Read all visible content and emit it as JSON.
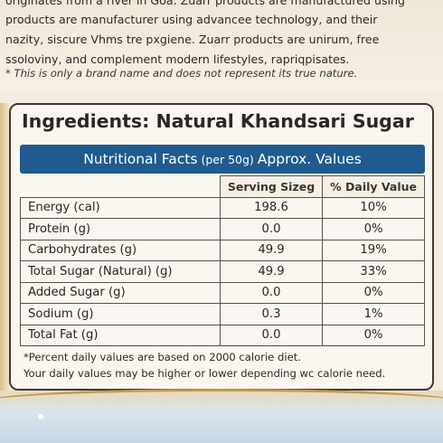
{
  "intro": {
    "line1": "originates from a river in Goa. Zuarr products are manufactured using",
    "line2": "products are manufacturer using advancee technology, and their",
    "line3": "nazity, siscure Vhms tre pxgiene. Zuarr products are unirum, free",
    "line4": "ssoloviny, and complement modern lifestyles, rapriqpisates.",
    "disclaimer": "* This is only a brand name and does not represent its true nature."
  },
  "panel": {
    "title": "Ingredients: Natural Khandsari Sugar",
    "facts_title": "Nutritional Facts",
    "facts_sub": "(per 50g)",
    "facts_values": "Approx. Values",
    "col_serving": "Serving Sizeg",
    "col_daily": "% Daily Value",
    "rows": [
      {
        "name": "Energy (cal)",
        "value": "198.6",
        "pct": "10%"
      },
      {
        "name": "Protein (g)",
        "value": "0.0",
        "pct": "0%"
      },
      {
        "name": "Carbohydrates (g)",
        "value": "49.9",
        "pct": "19%"
      },
      {
        "name": "Total Sugar (Natural) (g)",
        "value": "49.9",
        "pct": "33%"
      },
      {
        "name": "Added Sugar (g)",
        "value": "0.0",
        "pct": "0%"
      },
      {
        "name": "Sodium (g)",
        "value": "0.3",
        "pct": "1%"
      },
      {
        "name": "Total Fat (g)",
        "value": "0.0",
        "pct": "0%"
      }
    ],
    "footnote1": "*Percent daily values are based on 2000 calorie diet.",
    "footnote2": "Your daily values may be higher or lower depending wc calorie need."
  },
  "colors": {
    "header_bar": "#1f5b8f",
    "accent_gold": "#c49a4a"
  }
}
